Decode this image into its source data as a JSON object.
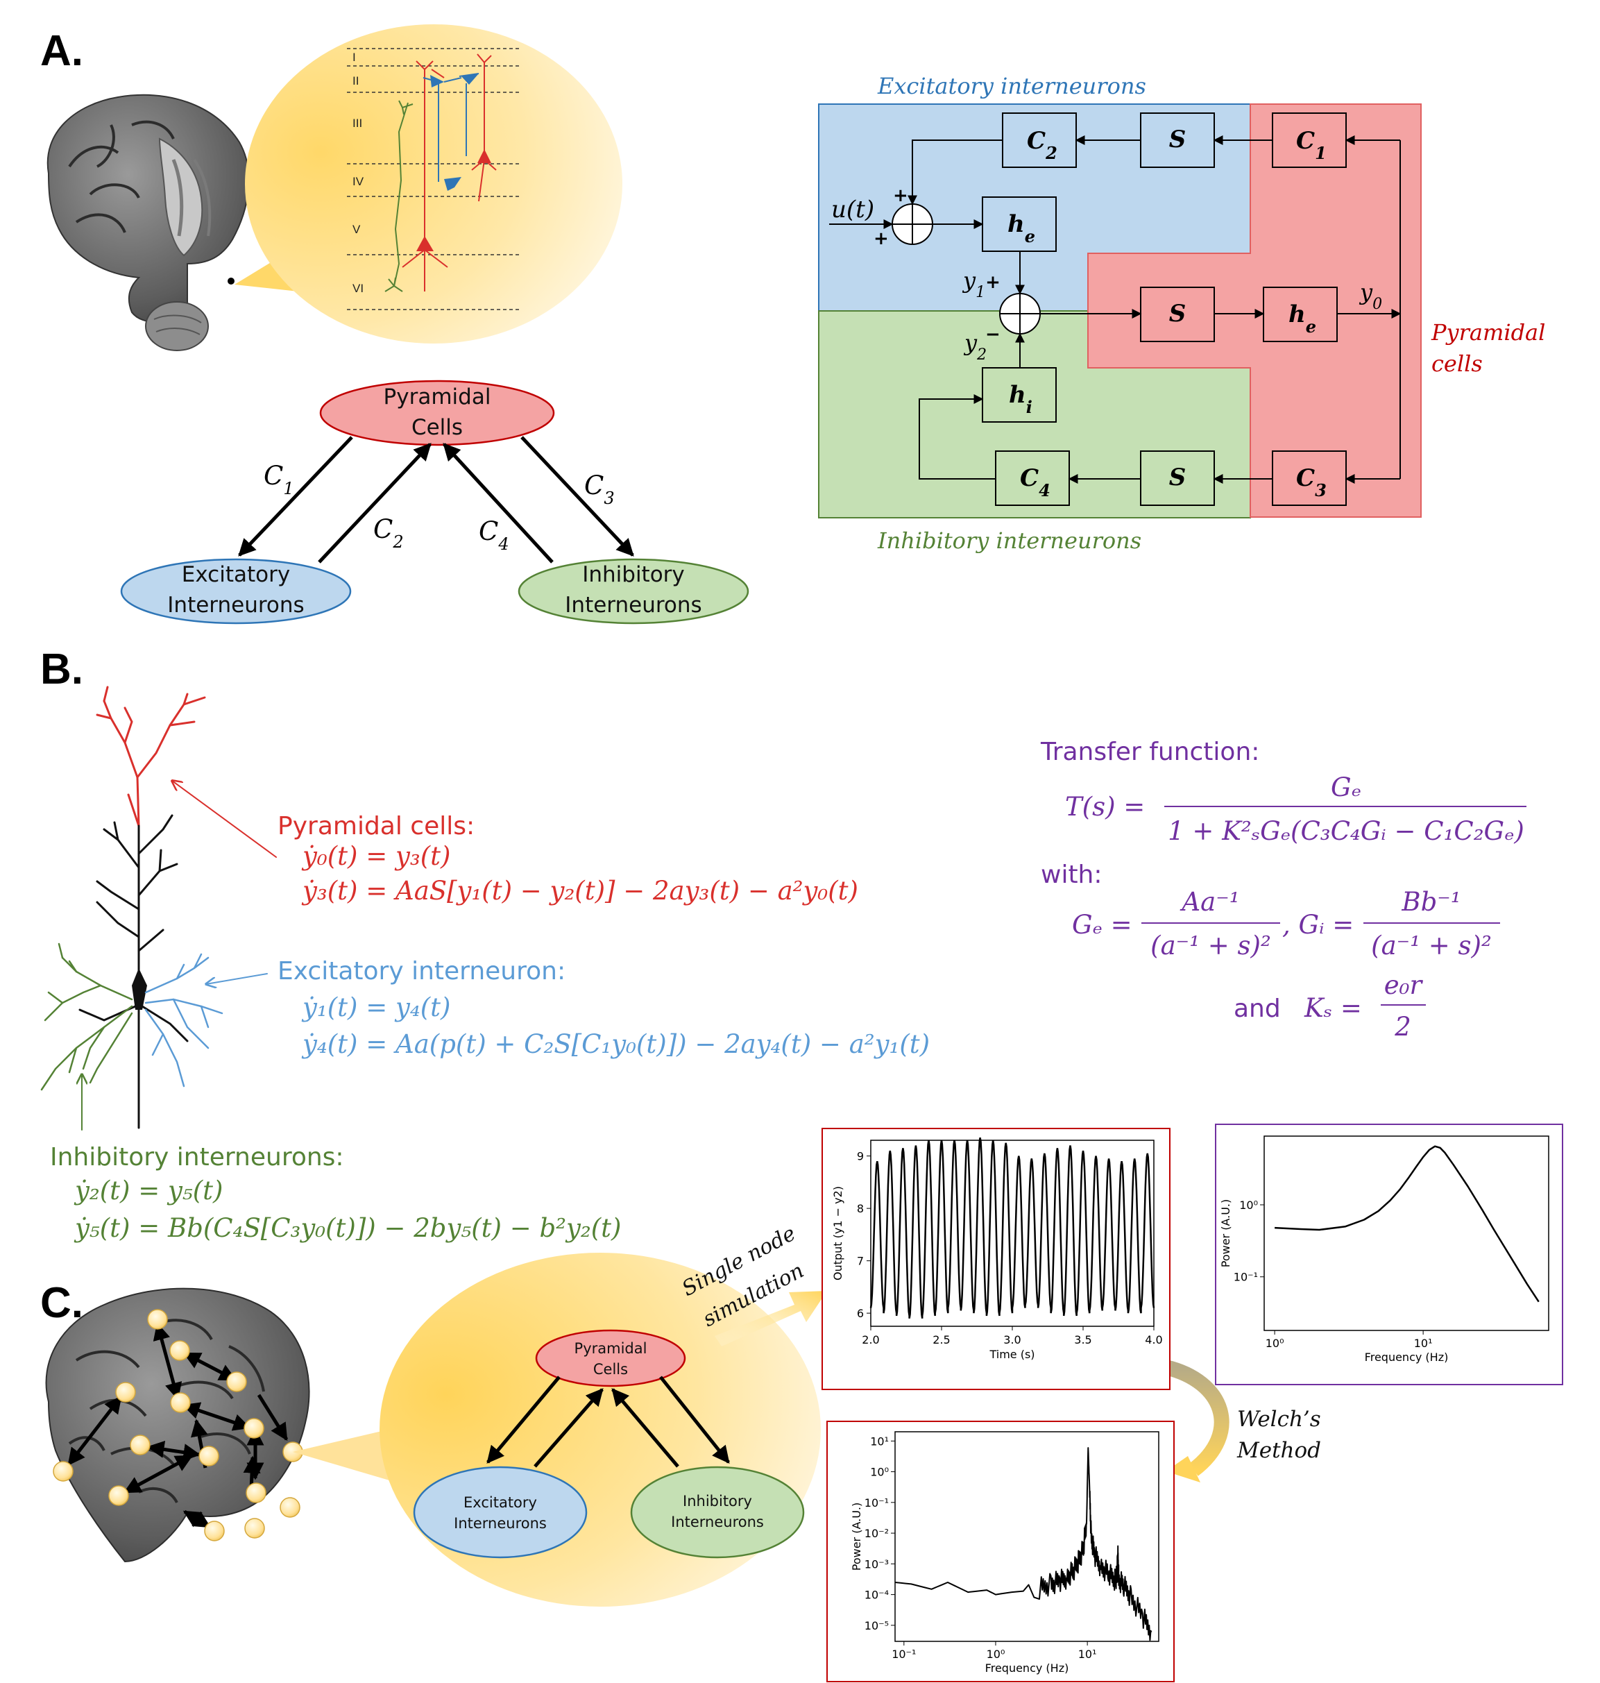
{
  "panels": {
    "a": "A.",
    "b": "B.",
    "c": "C."
  },
  "cortex_layers": [
    "I",
    "II",
    "III",
    "IV",
    "V",
    "VI"
  ],
  "jansen_rit": {
    "pyramidal": [
      "Pyramidal",
      "Cells"
    ],
    "excitatory": [
      "Excitatory",
      "Interneurons"
    ],
    "inhibitory": [
      "Inhibitory",
      "Interneurons"
    ],
    "c1": "C",
    "c1_sub": "1",
    "c2": "C",
    "c2_sub": "2",
    "c3": "C",
    "c3_sub": "3",
    "c4": "C",
    "c4_sub": "4"
  },
  "block_diagram": {
    "title_excitatory": "Excitatory interneurons",
    "title_inhibitory": "Inhibitory interneurons",
    "title_pyramidal": [
      "Pyramidal",
      "cells"
    ],
    "input": "u(t)",
    "plus": "+",
    "minus": "−",
    "y1": "y",
    "y1_sub": "1",
    "y2": "y",
    "y2_sub": "2",
    "y0": "y",
    "y0_sub": "0",
    "S": "S",
    "he": "h",
    "he_sub": "e",
    "hi": "h",
    "hi_sub": "i",
    "C": "C",
    "sub1": "1",
    "sub2": "2",
    "sub3": "3",
    "sub4": "4"
  },
  "equations": {
    "pyramidal_head": "Pyramidal cells:",
    "pyr_eq1": "ẏ₀(t) = y₃(t)",
    "pyr_eq2": "ẏ₃(t) = AaS[y₁(t) − y₂(t)] − 2ay₃(t) − a²y₀(t)",
    "exc_head": "Excitatory interneuron:",
    "exc_eq1": "ẏ₁(t) = y₄(t)",
    "exc_eq2": "ẏ₄(t) = Aa(p(t) + C₂S[C₁y₀(t)]) − 2ay₄(t) − a²y₁(t)",
    "inh_head": "Inhibitory interneurons:",
    "inh_eq1": "ẏ₂(t) = y₅(t)",
    "inh_eq2": "ẏ₅(t) = Bb(C₄S[C₃y₀(t)]) − 2by₅(t) − b²y₂(t)",
    "tf_head": "Transfer function:",
    "tf_lhs": "T(s) =",
    "tf_num": "Gₑ",
    "tf_den": "1 + K²ₛGₑ(C₃C₄Gᵢ − C₁C₂Gₑ)",
    "with": "with:",
    "ge_lhs": "Gₑ =",
    "ge_num": "Aa⁻¹",
    "ge_den": "(a⁻¹ + s)²",
    "gi_lhs": ", Gᵢ =",
    "gi_num": "Bb⁻¹",
    "gi_den": "(a⁻¹ + s)²",
    "and": "and",
    "ks_lhs": "Kₛ =",
    "ks_num": "e₀r",
    "ks_den": "2"
  },
  "panel_c": {
    "single_node": [
      "Single node",
      "simulation"
    ],
    "welch": [
      "Welch’s",
      "Method"
    ],
    "pyramidal": [
      "Pyramidal",
      "Cells"
    ],
    "excitatory": [
      "Excitatory",
      "Interneurons"
    ],
    "inhibitory": [
      "Inhibitory",
      "Interneurons"
    ]
  },
  "colors": {
    "red": "#d9302c",
    "blue": "#5b9bd5",
    "green": "#548235",
    "purple": "#7030a0",
    "box_blue": "#bdd7ee",
    "box_red": "#f4a3a3",
    "box_green": "#c5e0b4"
  },
  "chart_data": [
    {
      "type": "line",
      "xlabel": "Time (s)",
      "ylabel": "Output (y1 − y2)",
      "xlim": [
        2.0,
        4.0
      ],
      "ylim": [
        5.75,
        9.3
      ],
      "xticks": [
        "2.0",
        "2.5",
        "3.0",
        "3.5",
        "4.0"
      ],
      "yticks": [
        "6",
        "7",
        "8",
        "9"
      ],
      "x_start": 2.0,
      "x_end": 4.0,
      "cycles": 22,
      "trough_values": [
        6.1,
        6.0,
        5.95,
        5.9,
        5.95,
        6.0,
        6.1,
        6.05,
        6.0,
        5.95,
        6.0,
        6.1,
        6.15,
        6.1,
        6.0,
        5.95,
        6.0,
        6.05,
        6.1,
        6.05,
        6.0,
        6.1
      ],
      "peak_values": [
        8.9,
        9.1,
        9.15,
        9.2,
        9.3,
        9.3,
        9.3,
        9.3,
        9.35,
        9.3,
        9.25,
        9.0,
        8.95,
        9.05,
        9.15,
        9.2,
        9.1,
        9.0,
        8.95,
        8.9,
        8.95,
        9.05
      ]
    },
    {
      "type": "line",
      "xlabel": "Frequency (Hz)",
      "ylabel": "Power (A.U.)",
      "xscale": "log",
      "yscale": "log",
      "xlim": [
        0.85,
        70
      ],
      "ylim": [
        0.018,
        9
      ],
      "xticks": [
        "10⁰",
        "10¹"
      ],
      "yticks": [
        "10⁰",
        "10⁻¹"
      ],
      "x": [
        1.0,
        1.5,
        2.0,
        3.0,
        4.0,
        5.0,
        6.0,
        7.0,
        8.0,
        9.0,
        10.0,
        11.0,
        12.0,
        13.0,
        14.0,
        16.0,
        20.0,
        25.0,
        30.0,
        40.0,
        50.0,
        60.0
      ],
      "values": [
        0.48,
        0.46,
        0.45,
        0.5,
        0.62,
        0.82,
        1.15,
        1.65,
        2.4,
        3.4,
        4.6,
        5.8,
        6.5,
        6.2,
        5.3,
        3.6,
        1.8,
        0.85,
        0.45,
        0.17,
        0.08,
        0.045
      ]
    },
    {
      "type": "line",
      "xlabel": "Frequency (Hz)",
      "ylabel": "Power (A.U.)",
      "xscale": "log",
      "yscale": "log",
      "xlim": [
        0.08,
        60
      ],
      "ylim": [
        3e-06,
        20
      ],
      "xticks": [
        "10⁻¹",
        "10⁰",
        "10¹"
      ],
      "yticks": [
        "10¹",
        "10⁰",
        "10⁻¹",
        "10⁻²",
        "10⁻³",
        "10⁻⁴",
        "10⁻⁵"
      ],
      "x": [
        0.08,
        0.12,
        0.2,
        0.3,
        0.5,
        0.8,
        1.0,
        1.5,
        2.0,
        3.0,
        4.0,
        5.0,
        6.0,
        7.0,
        8.0,
        9.0,
        9.8,
        10.2,
        10.5,
        11.0,
        12.0,
        14.0,
        17.0,
        20.0,
        21.0,
        21.5,
        22.0,
        25.0,
        30.0,
        40.0,
        50.0
      ],
      "values": [
        0.00025,
        0.00022,
        0.00015,
        0.00025,
        0.00012,
        0.00014,
        0.0001,
        0.00012,
        0.00013,
        0.00016,
        0.00022,
        0.00028,
        0.00035,
        0.0006,
        0.0012,
        0.003,
        0.02,
        6.0,
        0.5,
        0.008,
        0.002,
        0.0008,
        0.0005,
        0.0003,
        0.0004,
        0.002,
        0.0003,
        0.0002,
        8e-05,
        2e-05,
        6e-06
      ]
    }
  ]
}
